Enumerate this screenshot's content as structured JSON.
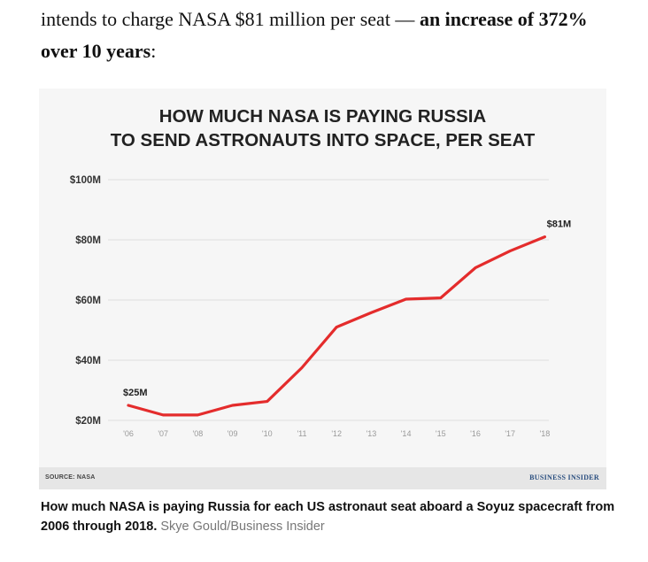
{
  "article": {
    "intro_plain": "intends to charge NASA $81 million per seat — ",
    "intro_bold": "an increase of 372% over 10 years",
    "intro_end": ":"
  },
  "caption": {
    "text": "How much NASA is paying Russia for each US astronaut seat aboard a Soyuz spacecraft from 2006 through 2018.",
    "credit": "Skye Gould/Business Insider"
  },
  "source": "SOURCE: NASA",
  "brand": "BUSINESS INSIDER",
  "colors": {
    "line": "#e42c2c",
    "background": "#f6f6f6",
    "footer": "#e6e6e6",
    "brand": "#2a4e7f"
  },
  "chart_data": {
    "type": "line",
    "title": "HOW MUCH NASA IS PAYING RUSSIA TO SEND ASTRONAUTS INTO SPACE, PER SEAT",
    "title_lines": [
      "HOW MUCH NASA IS PAYING RUSSIA",
      "TO SEND ASTRONAUTS INTO SPACE, PER SEAT"
    ],
    "categories": [
      "'06",
      "'07",
      "'08",
      "'09",
      "'10",
      "'11",
      "'12",
      "'13",
      "'14",
      "'15",
      "'16",
      "'17",
      "'18"
    ],
    "y_tick_values": [
      20,
      40,
      60,
      80,
      100
    ],
    "y_tick_labels": [
      "$20M",
      "$40M",
      "$60M",
      "$80M",
      "$100M"
    ],
    "ylim": [
      20,
      100
    ],
    "series": [
      {
        "values": [
          25,
          21.8,
          21.8,
          25,
          26.3,
          37.5,
          51,
          55.8,
          60.3,
          60.7,
          70.7,
          76.3,
          81
        ]
      }
    ],
    "data_labels": [
      {
        "index": 0,
        "text": "$25M"
      },
      {
        "index": 12,
        "text": "$81M"
      }
    ],
    "grid": true,
    "xlabel": "",
    "ylabel": ""
  }
}
